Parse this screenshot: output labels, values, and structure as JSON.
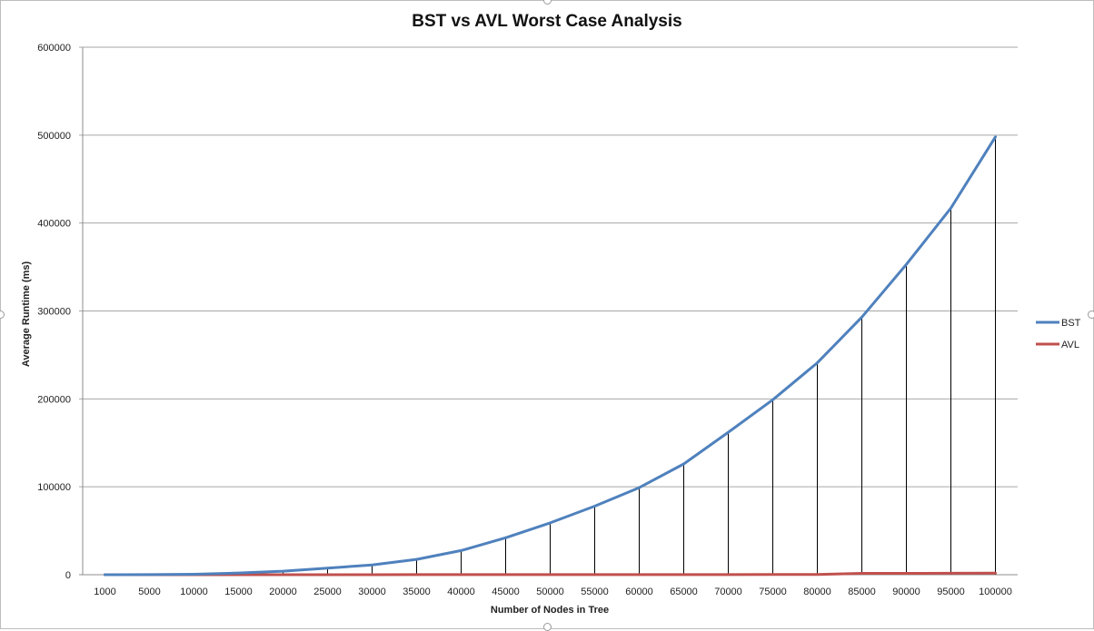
{
  "chart_data": {
    "type": "line",
    "title": "BST vs AVL Worst Case Analysis",
    "xlabel": "Number of Nodes in Tree",
    "ylabel": "Average Runtime (ms)",
    "ylim": [
      0,
      600000
    ],
    "yticks": [
      "0",
      "100000",
      "200000",
      "300000",
      "400000",
      "500000",
      "600000"
    ],
    "categories": [
      "1000",
      "5000",
      "10000",
      "15000",
      "20000",
      "25000",
      "30000",
      "35000",
      "40000",
      "45000",
      "50000",
      "55000",
      "60000",
      "65000",
      "70000",
      "75000",
      "80000",
      "85000",
      "90000",
      "95000",
      "100000"
    ],
    "series": [
      {
        "name": "BST",
        "color": "#4f81bd",
        "values": [
          50,
          120,
          500,
          2000,
          4000,
          7500,
          11000,
          17500,
          27500,
          42000,
          59000,
          78000,
          99000,
          126000,
          162000,
          199000,
          241000,
          293000,
          353000,
          417000,
          498000
        ]
      },
      {
        "name": "AVL",
        "color": "#c0504d",
        "values": [
          5,
          10,
          15,
          20,
          30,
          40,
          50,
          60,
          70,
          80,
          90,
          100,
          110,
          120,
          140,
          160,
          180,
          1500,
          1600,
          1700,
          1800
        ]
      }
    ],
    "drop_lines": true,
    "grid": true,
    "legend_position": "right"
  }
}
